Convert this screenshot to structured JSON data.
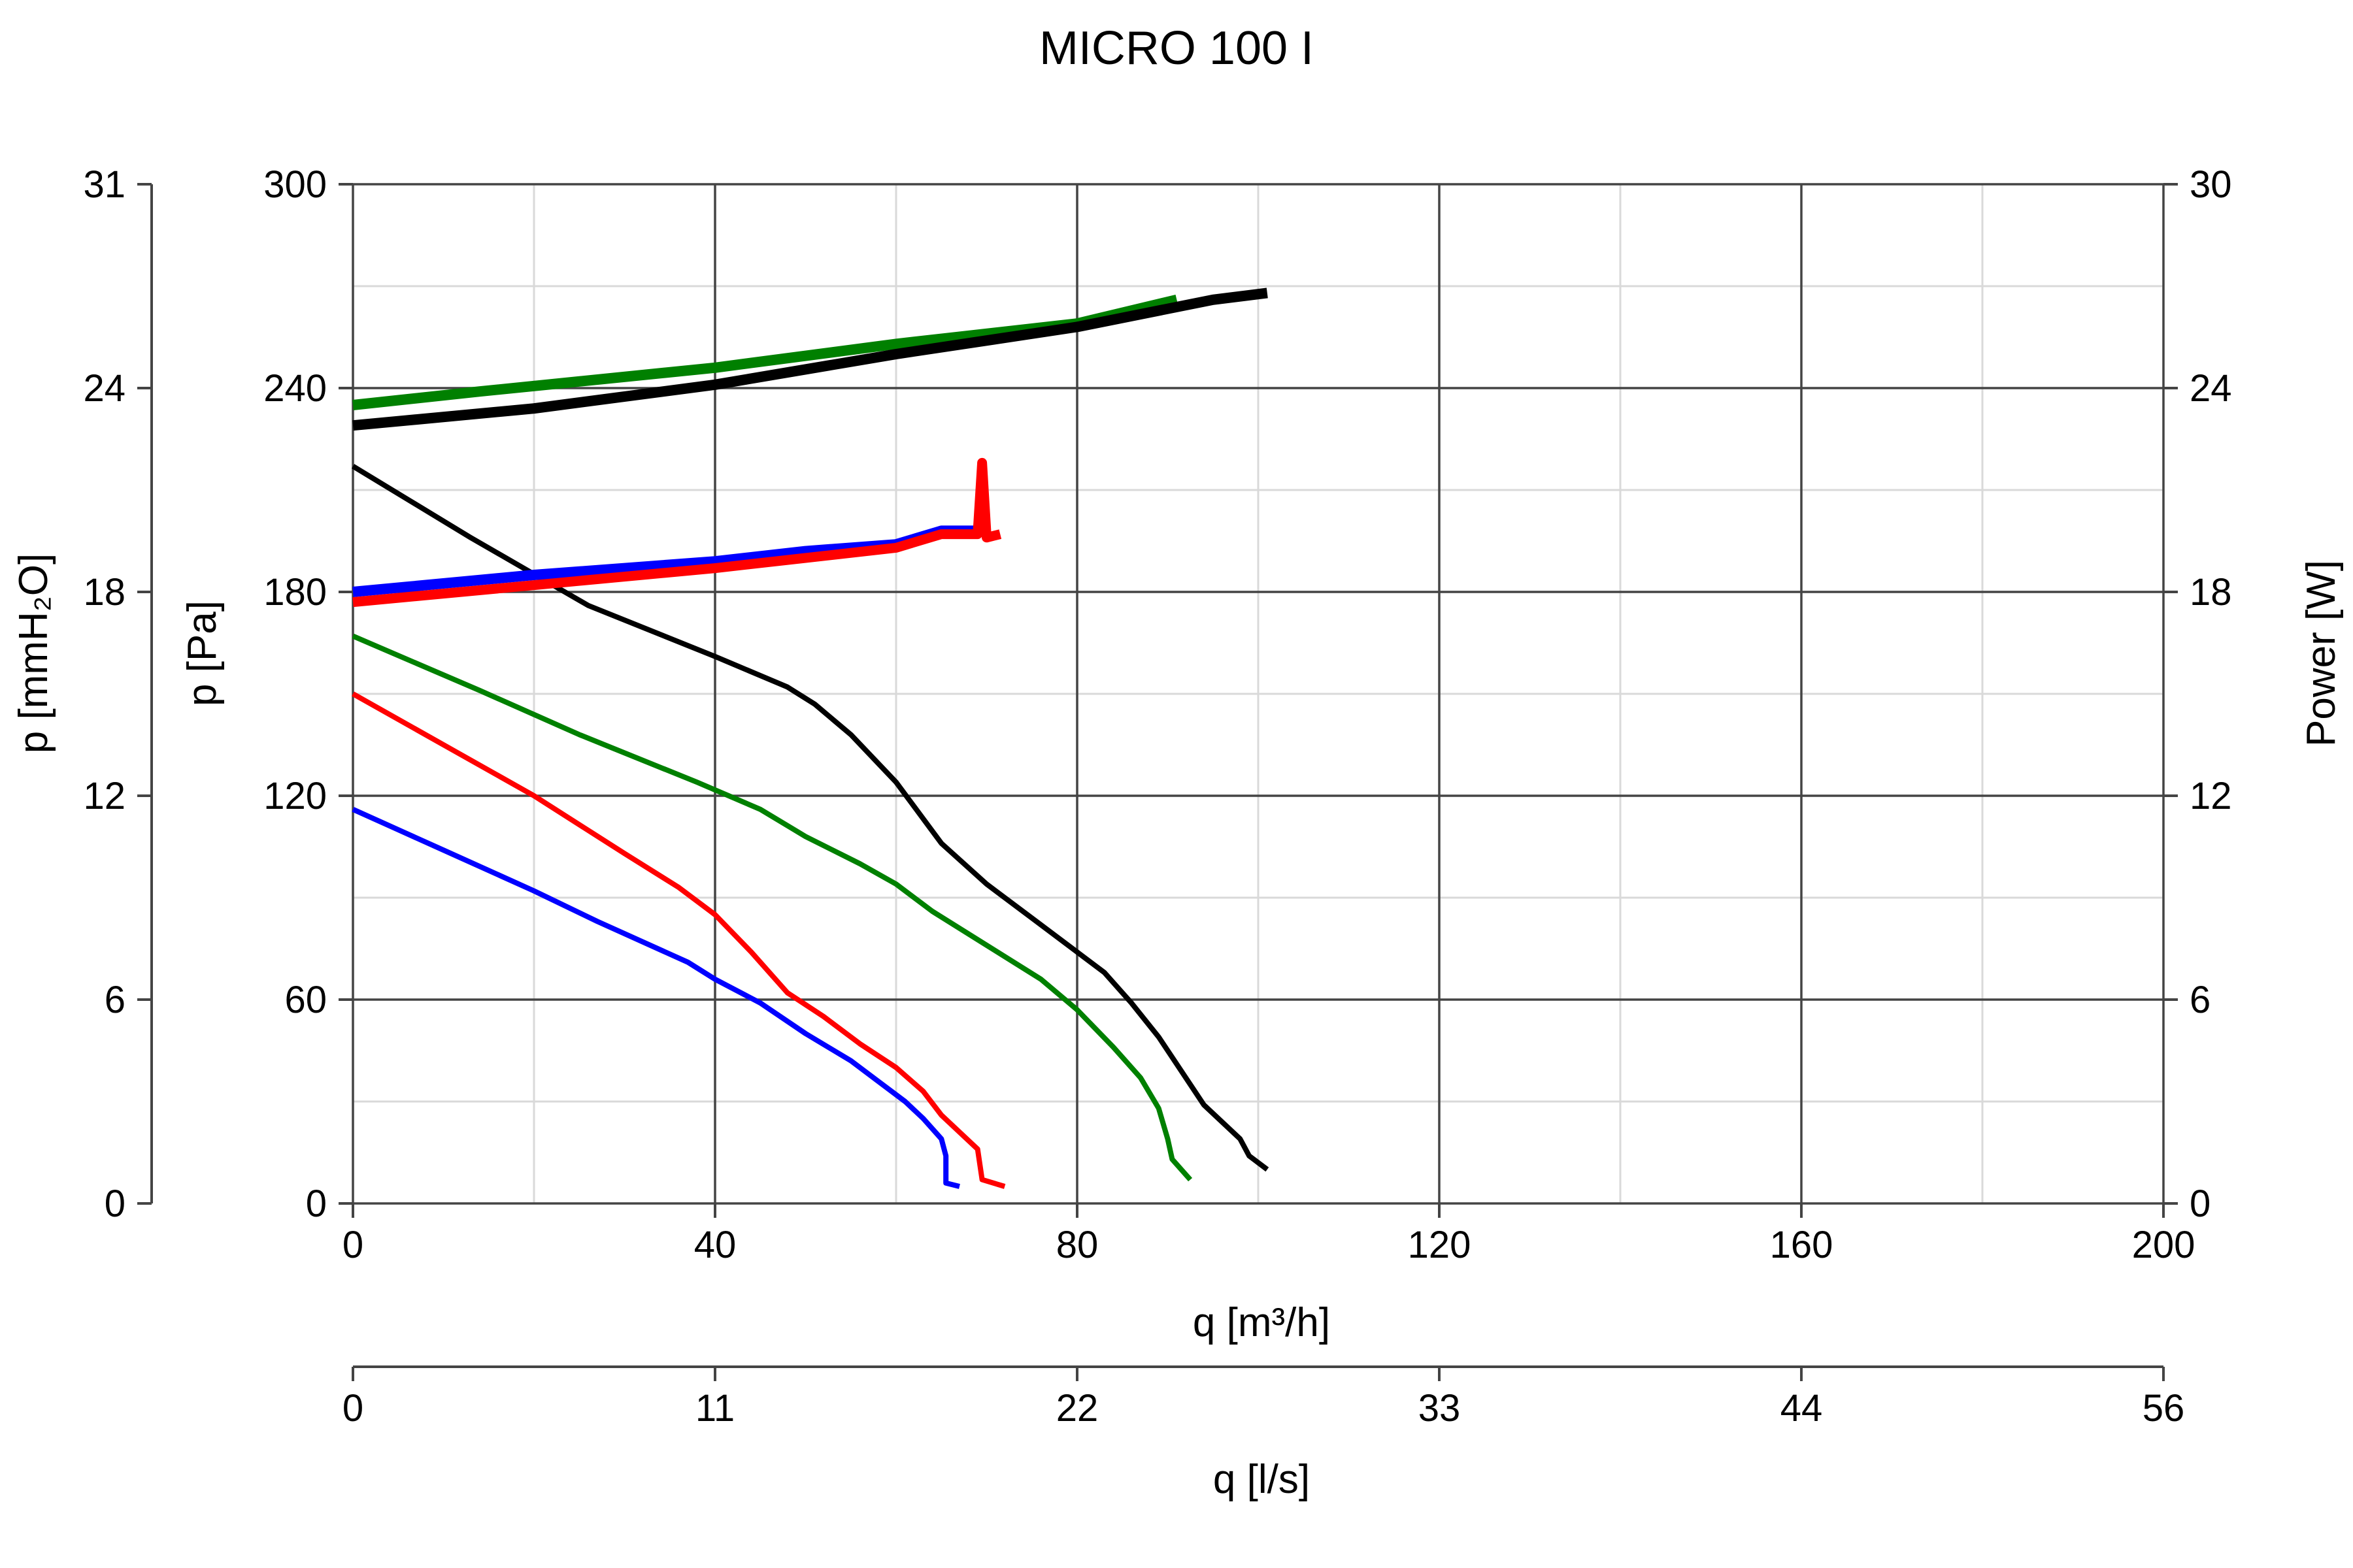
{
  "chart_data": {
    "type": "line",
    "title": "MICRO 100 I",
    "xlabel": "q [m³/h]",
    "x2label": "q [l/s]",
    "ylabel": "p [Pa]",
    "y2label": "p [mmH₂O]",
    "y3label": "Power [W]",
    "xlim": [
      0,
      200
    ],
    "ylim": [
      0,
      300
    ],
    "x_ticks": [
      "0",
      "40",
      "80",
      "120",
      "160",
      "200"
    ],
    "x2_ticks": [
      "0",
      "11",
      "22",
      "33",
      "44",
      "56"
    ],
    "y_ticks": [
      "0",
      "60",
      "120",
      "180",
      "240",
      "300"
    ],
    "y2_ticks": [
      "0",
      "6",
      "12",
      "18",
      "24",
      "31"
    ],
    "y3_ticks": [
      "0",
      "6",
      "12",
      "18",
      "24",
      "30"
    ],
    "grid": true,
    "series": [
      {
        "kind": "pressure",
        "color": "#0000ff",
        "points": [
          [
            0,
            116
          ],
          [
            10,
            104
          ],
          [
            20,
            92
          ],
          [
            27,
            83
          ],
          [
            37,
            71
          ],
          [
            40,
            66
          ],
          [
            45,
            59
          ],
          [
            50,
            50
          ],
          [
            55,
            42
          ],
          [
            58,
            36
          ],
          [
            61,
            30
          ],
          [
            63,
            25
          ],
          [
            65,
            19
          ],
          [
            65.5,
            14
          ],
          [
            65.5,
            6
          ],
          [
            67,
            5
          ]
        ]
      },
      {
        "kind": "pressure",
        "color": "#ff0000",
        "points": [
          [
            0,
            150
          ],
          [
            10,
            135
          ],
          [
            20,
            120
          ],
          [
            30,
            103
          ],
          [
            36,
            93
          ],
          [
            40,
            85
          ],
          [
            44,
            74
          ],
          [
            48,
            62
          ],
          [
            52,
            55
          ],
          [
            56,
            47
          ],
          [
            60,
            40
          ],
          [
            63,
            33
          ],
          [
            65,
            26
          ],
          [
            67,
            21
          ],
          [
            69,
            16
          ],
          [
            69.5,
            7
          ],
          [
            72,
            5
          ]
        ]
      },
      {
        "kind": "pressure",
        "color": "#008000",
        "points": [
          [
            0,
            167
          ],
          [
            14,
            151
          ],
          [
            25,
            138
          ],
          [
            38,
            124
          ],
          [
            45,
            116
          ],
          [
            50,
            108
          ],
          [
            56,
            100
          ],
          [
            60,
            94
          ],
          [
            64,
            86
          ],
          [
            70,
            76
          ],
          [
            76,
            66
          ],
          [
            80,
            57
          ],
          [
            84,
            46
          ],
          [
            87,
            37
          ],
          [
            89,
            28
          ],
          [
            90,
            19
          ],
          [
            90.5,
            13
          ],
          [
            92.5,
            7
          ]
        ]
      },
      {
        "kind": "pressure",
        "color": "#000000",
        "points": [
          [
            0,
            217
          ],
          [
            13,
            196
          ],
          [
            26,
            176
          ],
          [
            40,
            161
          ],
          [
            48,
            152
          ],
          [
            51,
            147
          ],
          [
            55,
            138
          ],
          [
            60,
            124
          ],
          [
            65,
            106
          ],
          [
            70,
            94
          ],
          [
            75,
            84
          ],
          [
            80,
            74
          ],
          [
            83,
            68
          ],
          [
            86,
            59
          ],
          [
            89,
            49
          ],
          [
            91,
            41
          ],
          [
            94,
            29
          ],
          [
            98,
            19
          ],
          [
            99,
            14
          ],
          [
            101,
            10
          ]
        ]
      },
      {
        "kind": "power",
        "color": "#0000ff",
        "points": [
          [
            0,
            18.0
          ],
          [
            20,
            18.5
          ],
          [
            40,
            18.9
          ],
          [
            50,
            19.2
          ],
          [
            60,
            19.4
          ],
          [
            65,
            19.8
          ],
          [
            69,
            19.8
          ]
        ]
      },
      {
        "kind": "power",
        "color": "#ff0000",
        "points": [
          [
            0,
            17.7
          ],
          [
            20,
            18.2
          ],
          [
            40,
            18.7
          ],
          [
            50,
            19.0
          ],
          [
            60,
            19.3
          ],
          [
            65,
            19.7
          ],
          [
            69,
            19.7
          ],
          [
            69.5,
            21.8
          ],
          [
            70,
            19.6
          ],
          [
            71.5,
            19.7
          ]
        ]
      },
      {
        "kind": "power",
        "color": "#008000",
        "points": [
          [
            0,
            23.5
          ],
          [
            14,
            23.9
          ],
          [
            40,
            24.6
          ],
          [
            60,
            25.3
          ],
          [
            80,
            25.9
          ],
          [
            91,
            26.6
          ]
        ]
      },
      {
        "kind": "power",
        "color": "#000000",
        "points": [
          [
            0,
            22.9
          ],
          [
            20,
            23.4
          ],
          [
            40,
            24.1
          ],
          [
            60,
            25.0
          ],
          [
            80,
            25.8
          ],
          [
            95,
            26.6
          ],
          [
            101,
            26.8
          ]
        ]
      }
    ]
  }
}
